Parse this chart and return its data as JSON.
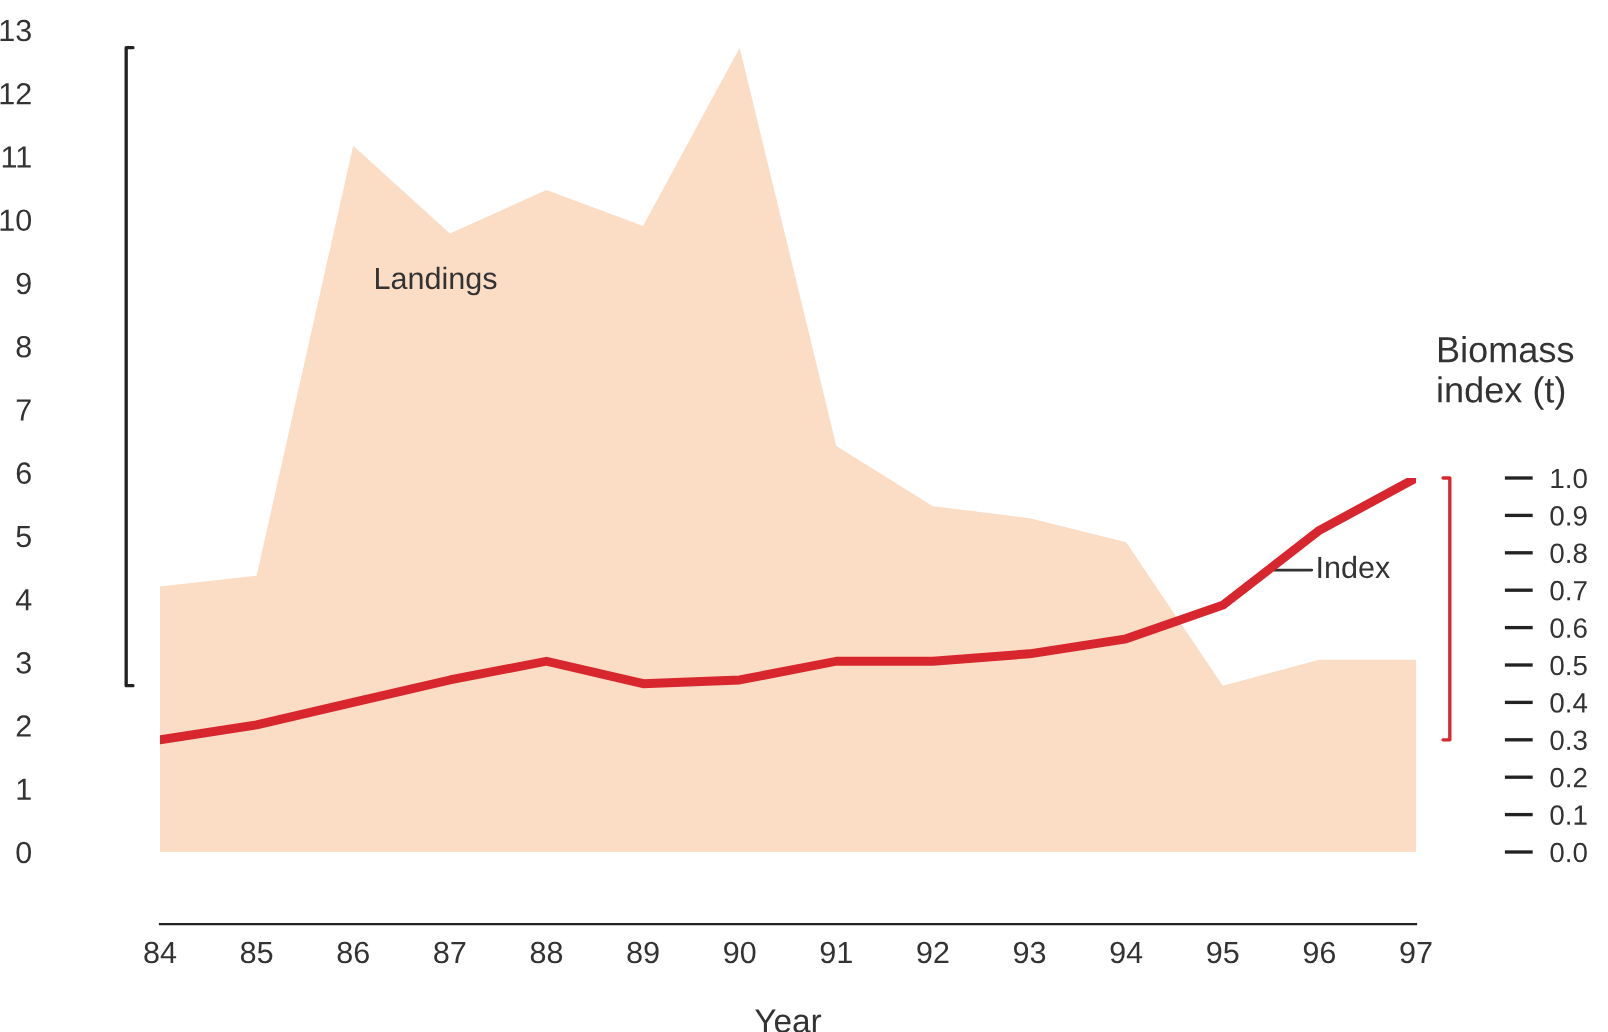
{
  "chart_data": {
    "type": "area",
    "xlabel": "Year",
    "y2label": "Biomass index (t)",
    "x": [
      84,
      85,
      86,
      87,
      88,
      89,
      90,
      91,
      92,
      93,
      94,
      95,
      96,
      97
    ],
    "xlim": [
      84,
      97
    ],
    "xticks": [
      84,
      85,
      86,
      87,
      88,
      89,
      90,
      91,
      92,
      93,
      94,
      95,
      96,
      97
    ],
    "ylim": [
      0,
      13
    ],
    "yticks": [
      0,
      1,
      2,
      3,
      4,
      5,
      6,
      7,
      8,
      9,
      10,
      11,
      12,
      13
    ],
    "y2lim": [
      0,
      1
    ],
    "y2ticks": [
      {
        "value": 0,
        "label": "0.0"
      },
      0.1,
      0.2,
      0.3,
      0.4,
      0.5,
      0.6,
      0.7,
      0.8,
      0.9,
      {
        "value": 1,
        "label": "1.0"
      }
    ],
    "grid": false,
    "legend": false,
    "series": [
      {
        "name": "Landings",
        "color": "#fbdcc4",
        "values": [
          4.2,
          4.37,
          11.17,
          9.78,
          10.47,
          9.9,
          12.72,
          6.42,
          5.47,
          5.28,
          4.9,
          2.63,
          3.04,
          3.04
        ]
      },
      {
        "name": "Index",
        "type": "line",
        "axis": "y2",
        "color": "#d7262e",
        "line_style": "solid",
        "values": [
          0.3,
          0.34,
          0.4,
          0.46,
          0.51,
          0.45,
          0.46,
          0.51,
          0.51,
          0.53,
          0.57,
          0.66,
          0.86,
          1.0
        ]
      }
    ]
  }
}
